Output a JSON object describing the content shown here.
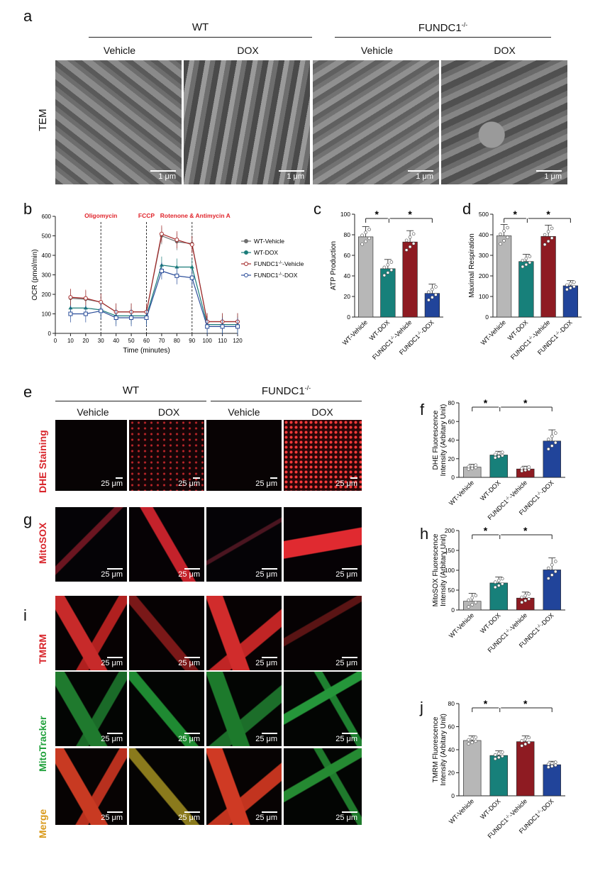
{
  "panels": {
    "a": "a",
    "b": "b",
    "c": "c",
    "d": "d",
    "e": "e",
    "f": "f",
    "g": "g",
    "h": "h",
    "i": "i",
    "j": "j"
  },
  "groups": {
    "wt": "WT",
    "fundc1": "FUNDC1",
    "fundc1_sup": "-/-"
  },
  "conditions": {
    "vehicle": "Vehicle",
    "dox": "DOX"
  },
  "row_labels": {
    "tem": "TEM",
    "dhe": "DHE Staining",
    "mitosox": "MitoSOX",
    "tmrm": "TMRM",
    "mitotracker": "MitoTracker",
    "merge": "Merge"
  },
  "scale_bars": {
    "tem": "1 μm",
    "fluor": "25 μm"
  },
  "colors": {
    "gray": "#b7b7b7",
    "teal": "#17807a",
    "red": "#8e1b22",
    "blue": "#21449a",
    "annot_red": "#e0242b"
  },
  "chart_data": [
    {
      "id": "b",
      "type": "line",
      "xlabel": "Time (minutes)",
      "ylabel": "OCR (pmol/min)",
      "x": [
        10,
        20,
        30,
        40,
        50,
        60,
        70,
        80,
        90,
        100,
        110,
        120
      ],
      "xlim": [
        0,
        120
      ],
      "ylim": [
        0,
        600
      ],
      "xticks": [
        0,
        10,
        20,
        30,
        40,
        50,
        60,
        70,
        80,
        90,
        100,
        110,
        120
      ],
      "yticks": [
        0,
        100,
        200,
        300,
        400,
        500,
        600
      ],
      "annotations": [
        {
          "text": "Oligomycin",
          "x": 30
        },
        {
          "text": "FCCP",
          "x": 60
        },
        {
          "text": "Rotenone & Antimycin A",
          "x": 90
        }
      ],
      "legend": "right",
      "series": [
        {
          "name": "WT-Vehicle",
          "color": "#6e6e6e",
          "marker": "circle",
          "values": [
            180,
            175,
            160,
            110,
            110,
            110,
            500,
            470,
            460,
            60,
            60,
            60
          ]
        },
        {
          "name": "WT-DOX",
          "color": "#1a7c79",
          "marker": "triangle",
          "values": [
            130,
            130,
            120,
            90,
            90,
            90,
            350,
            340,
            340,
            45,
            45,
            45
          ]
        },
        {
          "name": "FUNDC1-Vehicle",
          "sup": "-/-",
          "color": "#a52a2a",
          "marker": "circle-open",
          "values": [
            185,
            180,
            160,
            110,
            110,
            110,
            510,
            480,
            455,
            60,
            60,
            60
          ]
        },
        {
          "name": "FUNDC1-DOX",
          "sup": "-/-",
          "color": "#2a4d9a",
          "marker": "square-open",
          "values": [
            100,
            100,
            115,
            80,
            80,
            80,
            320,
            295,
            285,
            35,
            35,
            35
          ]
        }
      ]
    },
    {
      "id": "c",
      "type": "bar",
      "ylabel": "ATP Production",
      "ylim": [
        0,
        100
      ],
      "yticks": [
        0,
        20,
        40,
        60,
        80,
        100
      ],
      "categories": [
        "WT-Vehicle",
        "WT-DOX",
        "FUNDC1-Vehicle",
        "FUNDC1-DOX"
      ],
      "values": [
        78,
        47,
        73,
        23
      ],
      "errors": [
        10,
        9,
        11,
        9
      ],
      "sig": [
        "*",
        "*"
      ]
    },
    {
      "id": "d",
      "type": "bar",
      "ylabel": "Maximal Respiration",
      "ylim": [
        0,
        500
      ],
      "yticks": [
        0,
        100,
        200,
        300,
        400,
        500
      ],
      "categories": [
        "WT-Vehicle",
        "WT-DOX",
        "FUNDC1-Vehicle",
        "FUNDC1-DOX"
      ],
      "values": [
        395,
        270,
        392,
        152
      ],
      "errors": [
        55,
        35,
        55,
        25
      ],
      "sig": [
        "*",
        "*"
      ]
    },
    {
      "id": "f",
      "type": "bar",
      "ylabel": "DHE Fluorescence Intensity (Arbitary Unit)",
      "ylim": [
        0,
        80
      ],
      "yticks": [
        0,
        20,
        40,
        60,
        80
      ],
      "categories": [
        "WT-Vehicle",
        "WT-DOX",
        "FUNDC1-Vehicle",
        "FUNDC1-DOX"
      ],
      "values": [
        11,
        24,
        9,
        39
      ],
      "errors": [
        3,
        4,
        3,
        12
      ],
      "sig": [
        "*",
        "*"
      ]
    },
    {
      "id": "h",
      "type": "bar",
      "ylabel": "MitoSOX Fluorescence Intensity (Arbitary Unit)",
      "ylim": [
        0,
        200
      ],
      "yticks": [
        0,
        50,
        100,
        150,
        200
      ],
      "categories": [
        "WT-Vehicle",
        "WT-DOX",
        "FUNDC1-Vehicle",
        "FUNDC1-DOX"
      ],
      "values": [
        22,
        68,
        30,
        101
      ],
      "errors": [
        20,
        15,
        15,
        30
      ],
      "sig": [
        "*",
        "*"
      ]
    },
    {
      "id": "j",
      "type": "bar",
      "ylabel": "TMRM Fluorescence Intensity (Arbitary Unit)",
      "ylim": [
        0,
        80
      ],
      "yticks": [
        0,
        20,
        40,
        60,
        80
      ],
      "categories": [
        "WT-Vehicle",
        "WT-DOX",
        "FUNDC1-Vehicle",
        "FUNDC1-DOX"
      ],
      "values": [
        48,
        35,
        47,
        27
      ],
      "errors": [
        4,
        4,
        5,
        3
      ],
      "sig": [
        "*",
        "*"
      ]
    }
  ]
}
